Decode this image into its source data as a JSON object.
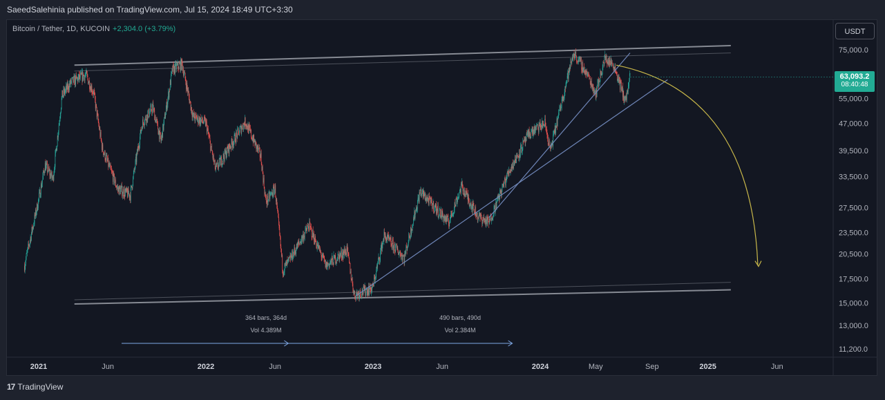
{
  "header": {
    "publisher_line": "SaeedSalehinia published on TradingView.com, Jul 15, 2024 18:49 UTC+3:30"
  },
  "legend": {
    "symbol": "Bitcoin / Tether, 1D, KUCOIN",
    "change": "+2,304.0 (+3.79%)"
  },
  "currency_button": "USDT",
  "last_price": {
    "price": "63,093.2",
    "countdown": "08:40:48"
  },
  "footer": {
    "brand": "TradingView",
    "logo_glyph": "17"
  },
  "colors": {
    "background": "#131722",
    "up": "#26a69a",
    "down": "#ef5350",
    "channel": "#9598a1",
    "trend": "#6f86b8",
    "arrow": "#c9b84a",
    "measure": "#7fa8e6"
  },
  "chart_data": {
    "type": "candlestick",
    "y_scale": "log",
    "y_ticks": [
      "75,000.0",
      "63,000.0",
      "55,000.0",
      "47,000.0",
      "39,500.0",
      "33,500.0",
      "27,500.0",
      "23,500.0",
      "20,500.0",
      "17,500.0",
      "15,000.0",
      "13,000.0",
      "11,200.0"
    ],
    "x_ticks": [
      "2021",
      "Jun",
      "2022",
      "Jun",
      "2023",
      "Jun",
      "2024",
      "May",
      "Sep",
      "2025",
      "Jun"
    ],
    "measurements": [
      {
        "bars": "364 bars, 364d",
        "vol": "Vol 4.389M"
      },
      {
        "bars": "490 bars, 490d",
        "vol": "Vol 2.384M"
      }
    ],
    "series": [
      {
        "values": [
          {
            "date": "2020-12-01",
            "close": 19000
          },
          {
            "date": "2021-01-01",
            "close": 29000
          },
          {
            "date": "2021-01-15",
            "close": 36000
          },
          {
            "date": "2021-02-01",
            "close": 33000
          },
          {
            "date": "2021-02-21",
            "close": 56000
          },
          {
            "date": "2021-03-13",
            "close": 61000
          },
          {
            "date": "2021-04-14",
            "close": 64000
          },
          {
            "date": "2021-05-01",
            "close": 57000
          },
          {
            "date": "2021-05-20",
            "close": 40000
          },
          {
            "date": "2021-06-22",
            "close": 31000
          },
          {
            "date": "2021-07-20",
            "close": 29800
          },
          {
            "date": "2021-08-15",
            "close": 47000
          },
          {
            "date": "2021-09-07",
            "close": 52000
          },
          {
            "date": "2021-09-25",
            "close": 42000
          },
          {
            "date": "2021-10-20",
            "close": 66000
          },
          {
            "date": "2021-11-10",
            "close": 68500
          },
          {
            "date": "2021-12-04",
            "close": 49000
          },
          {
            "date": "2022-01-01",
            "close": 47000
          },
          {
            "date": "2022-01-22",
            "close": 35000
          },
          {
            "date": "2022-03-28",
            "close": 47500
          },
          {
            "date": "2022-05-01",
            "close": 38000
          },
          {
            "date": "2022-05-12",
            "close": 28500
          },
          {
            "date": "2022-06-01",
            "close": 31000
          },
          {
            "date": "2022-06-18",
            "close": 18500
          },
          {
            "date": "2022-07-01",
            "close": 19500
          },
          {
            "date": "2022-08-14",
            "close": 24500
          },
          {
            "date": "2022-09-20",
            "close": 19000
          },
          {
            "date": "2022-11-05",
            "close": 21000
          },
          {
            "date": "2022-11-21",
            "close": 15800
          },
          {
            "date": "2022-12-31",
            "close": 16500
          },
          {
            "date": "2023-01-25",
            "close": 23000
          },
          {
            "date": "2023-03-10",
            "close": 20000
          },
          {
            "date": "2023-04-14",
            "close": 30500
          },
          {
            "date": "2023-06-15",
            "close": 25000
          },
          {
            "date": "2023-07-13",
            "close": 31500
          },
          {
            "date": "2023-08-18",
            "close": 26000
          },
          {
            "date": "2023-09-11",
            "close": 25000
          },
          {
            "date": "2023-10-24",
            "close": 34500
          },
          {
            "date": "2023-12-08",
            "close": 44000
          },
          {
            "date": "2024-01-11",
            "close": 47000
          },
          {
            "date": "2024-01-23",
            "close": 39500
          },
          {
            "date": "2024-02-28",
            "close": 62000
          },
          {
            "date": "2024-03-14",
            "close": 73500
          },
          {
            "date": "2024-04-13",
            "close": 64000
          },
          {
            "date": "2024-05-01",
            "close": 57000
          },
          {
            "date": "2024-05-21",
            "close": 71000
          },
          {
            "date": "2024-06-10",
            "close": 68000
          },
          {
            "date": "2024-07-05",
            "close": 54000
          },
          {
            "date": "2024-07-15",
            "close": 63093.2
          }
        ]
      }
    ]
  }
}
